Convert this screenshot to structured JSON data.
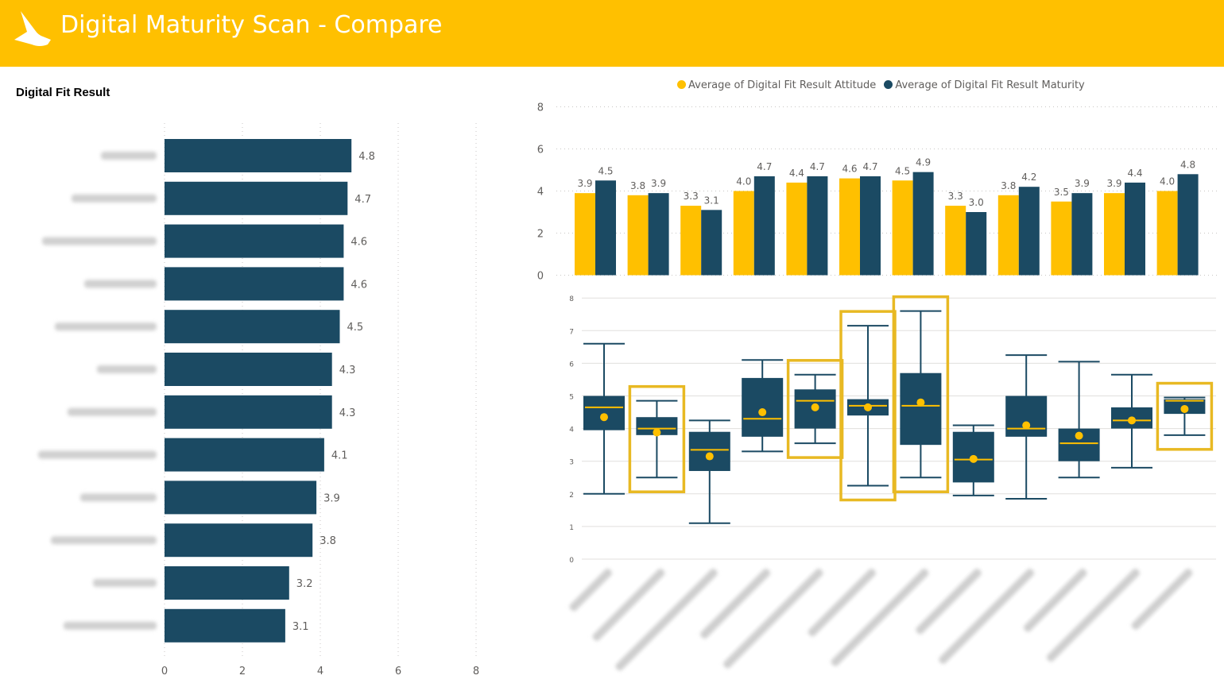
{
  "header": {
    "title": "Digital Maturity Scan - Compare",
    "background": "#ffc000"
  },
  "colors": {
    "navy": "#1b4a63",
    "gold": "#ffc000",
    "grid": "#c8c6c4",
    "label": "#605e5c"
  },
  "chart_data": [
    {
      "type": "bar",
      "orientation": "horizontal",
      "title": "Digital Fit Result",
      "xlim": [
        0,
        8
      ],
      "xticks": [
        "0",
        "2",
        "4",
        "6",
        "8"
      ],
      "values": [
        4.8,
        4.7,
        4.6,
        4.6,
        4.5,
        4.3,
        4.3,
        4.1,
        3.9,
        3.8,
        3.2,
        3.1
      ],
      "labels": [
        "4.8",
        "4.7",
        "4.6",
        "4.6",
        "4.5",
        "4.3",
        "4.3",
        "4.1",
        "3.9",
        "3.8",
        "3.2",
        "3.1"
      ],
      "category_labels_blurred": true,
      "color": "#1b4a63"
    },
    {
      "type": "bar",
      "orientation": "vertical",
      "grouped": true,
      "ylim": [
        0,
        8
      ],
      "yticks": [
        "0",
        "2",
        "4",
        "6",
        "8"
      ],
      "legend_position": "top",
      "series": [
        {
          "name": "Average of Digital Fit Result Attitude",
          "color": "#ffc000",
          "values": [
            3.9,
            3.8,
            3.3,
            4.0,
            4.4,
            4.6,
            4.5,
            3.3,
            3.8,
            3.5,
            3.9,
            4.0
          ],
          "labels": [
            "3.9",
            "3.8",
            "3.3",
            "4.0",
            "4.4",
            "4.6",
            "4.5",
            "3.3",
            "3.8",
            "3.5",
            "3.9",
            "4.0"
          ]
        },
        {
          "name": "Average of Digital Fit Result Maturity",
          "color": "#1b4a63",
          "values": [
            4.5,
            3.9,
            3.1,
            4.7,
            4.7,
            4.7,
            4.9,
            3.0,
            4.2,
            3.9,
            4.4,
            4.8
          ],
          "labels": [
            "4.5",
            "3.9",
            "3.1",
            "4.7",
            "4.7",
            "4.7",
            "4.9",
            "3.0",
            "4.2",
            "3.9",
            "4.4",
            "4.8"
          ]
        }
      ]
    },
    {
      "type": "boxplot",
      "ylim": [
        0,
        8
      ],
      "yticks": [
        "0",
        "1",
        "2",
        "3",
        "4",
        "5",
        "6",
        "7",
        "8"
      ],
      "category_labels_blurred": true,
      "boxes": [
        {
          "min": 2.0,
          "q1": 3.95,
          "median": 4.65,
          "q3": 5.0,
          "max": 6.6,
          "mean": 4.35,
          "highlighted": false
        },
        {
          "min": 2.5,
          "q1": 3.8,
          "median": 4.0,
          "q3": 4.35,
          "max": 4.85,
          "mean": 3.88,
          "highlighted": true
        },
        {
          "min": 1.1,
          "q1": 2.7,
          "median": 3.35,
          "q3": 3.9,
          "max": 4.25,
          "mean": 3.15,
          "highlighted": false
        },
        {
          "min": 3.3,
          "q1": 3.75,
          "median": 4.3,
          "q3": 5.55,
          "max": 6.1,
          "mean": 4.5,
          "highlighted": false
        },
        {
          "min": 3.55,
          "q1": 4.0,
          "median": 4.85,
          "q3": 5.2,
          "max": 5.65,
          "mean": 4.65,
          "highlighted": true
        },
        {
          "min": 2.25,
          "q1": 4.4,
          "median": 4.7,
          "q3": 4.9,
          "max": 7.15,
          "mean": 4.65,
          "highlighted": true
        },
        {
          "min": 2.5,
          "q1": 3.5,
          "median": 4.7,
          "q3": 5.7,
          "max": 7.6,
          "mean": 4.8,
          "highlighted": true
        },
        {
          "min": 1.95,
          "q1": 2.35,
          "median": 3.05,
          "q3": 3.9,
          "max": 4.1,
          "mean": 3.07,
          "highlighted": false
        },
        {
          "min": 1.85,
          "q1": 3.75,
          "median": 4.0,
          "q3": 5.0,
          "max": 6.25,
          "mean": 4.1,
          "highlighted": false
        },
        {
          "min": 2.5,
          "q1": 3.0,
          "median": 3.55,
          "q3": 4.0,
          "max": 6.05,
          "mean": 3.78,
          "highlighted": false
        },
        {
          "min": 2.8,
          "q1": 4.0,
          "median": 4.25,
          "q3": 4.65,
          "max": 5.65,
          "mean": 4.25,
          "highlighted": false
        },
        {
          "min": 3.8,
          "q1": 4.45,
          "median": 4.85,
          "q3": 4.9,
          "max": 4.95,
          "mean": 4.6,
          "highlighted": true
        }
      ]
    }
  ]
}
